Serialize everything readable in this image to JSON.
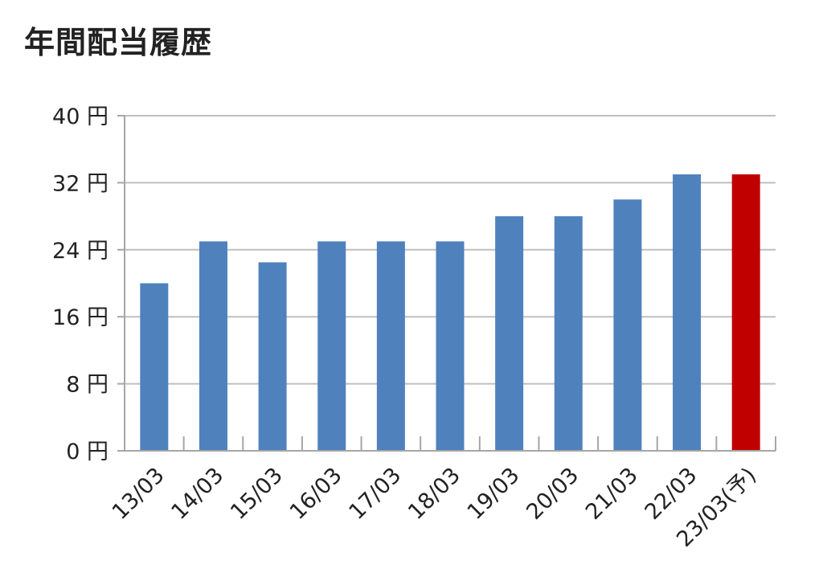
{
  "chart_data": {
    "type": "bar",
    "title": "年間配当履歴",
    "xlabel": "",
    "ylabel": "",
    "y_unit": "円",
    "categories": [
      "13/03",
      "14/03",
      "15/03",
      "16/03",
      "17/03",
      "18/03",
      "19/03",
      "20/03",
      "21/03",
      "22/03",
      "23/03(予)"
    ],
    "values": [
      20,
      25,
      22.5,
      25,
      25,
      25,
      28,
      28,
      30,
      33,
      33
    ],
    "ylim": [
      0,
      40
    ],
    "yticks": [
      0,
      8,
      16,
      24,
      32,
      40
    ],
    "ytick_labels": [
      "0 円",
      "8 円",
      "16 円",
      "24 円",
      "32 円",
      "40 円"
    ],
    "grid": true,
    "colors": {
      "actual": "#4f81bd",
      "forecast": "#c00000",
      "grid": "#bfbfbf",
      "axis": "#a6a6a6"
    },
    "forecast_index": 10
  }
}
